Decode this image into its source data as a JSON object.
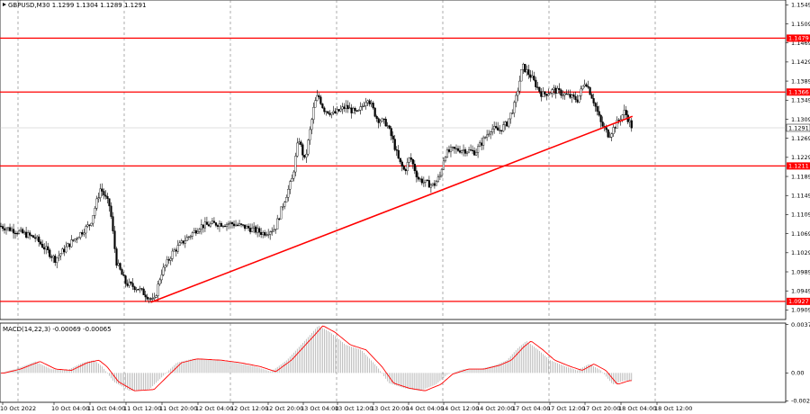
{
  "chart_data": [
    {
      "type": "candlestick",
      "title": "GBPUSD,M30  1.1299 1.1304 1.1289 1.1291",
      "ylim": [
        1.0889,
        1.1559
      ],
      "y_ticks": [
        "1.1549",
        "1.1509",
        "1.1469",
        "1.1429",
        "1.1389",
        "1.1349",
        "1.1309",
        "1.1269",
        "1.1229",
        "1.1189",
        "1.1149",
        "1.1109",
        "1.1069",
        "1.1029",
        "1.0989",
        "1.0949",
        "1.0909"
      ],
      "x_ticks": [
        "10 Oct 2022",
        "10 Oct 04:00",
        "11 Oct 04:00",
        "11 Oct 12:00",
        "11 Oct 20:00",
        "12 Oct 04:00",
        "12 Oct 12:00",
        "12 Oct 20:00",
        "13 Oct 04:00",
        "13 Oct 12:00",
        "13 Oct 20:00",
        "14 Oct 04:00",
        "14 Oct 12:00",
        "14 Oct 20:00",
        "17 Oct 04:00",
        "17 Oct 12:00",
        "17 Oct 20:00",
        "18 Oct 04:00",
        "18 Oct 12:00"
      ],
      "levels": [
        {
          "value": 1.1479,
          "label": "1.1479",
          "color": "#ff0000"
        },
        {
          "value": 1.1366,
          "label": "1.1366",
          "color": "#ff0000"
        },
        {
          "value": 1.1211,
          "label": "1.1211",
          "color": "#ff0000"
        },
        {
          "value": 1.0927,
          "label": "1.0927",
          "color": "#ff0000"
        }
      ],
      "current_price": {
        "value": 1.1291,
        "label": "1.1291"
      },
      "trendline": {
        "from": [
          0.192,
          1.0925
        ],
        "to": [
          0.805,
          1.1315
        ],
        "color": "#ff0000"
      },
      "anchors": [
        [
          0.0,
          1.1085
        ],
        [
          0.02,
          1.1075
        ],
        [
          0.045,
          1.106
        ],
        [
          0.07,
          1.1015
        ],
        [
          0.09,
          1.105
        ],
        [
          0.115,
          1.109
        ],
        [
          0.128,
          1.1165
        ],
        [
          0.14,
          1.1125
        ],
        [
          0.148,
          1.101
        ],
        [
          0.16,
          1.0965
        ],
        [
          0.175,
          1.0955
        ],
        [
          0.19,
          1.0935
        ],
        [
          0.196,
          1.0925
        ],
        [
          0.205,
          1.0985
        ],
        [
          0.22,
          1.103
        ],
        [
          0.235,
          1.1055
        ],
        [
          0.255,
          1.1085
        ],
        [
          0.275,
          1.109
        ],
        [
          0.295,
          1.109
        ],
        [
          0.318,
          1.108
        ],
        [
          0.335,
          1.107
        ],
        [
          0.35,
          1.108
        ],
        [
          0.36,
          1.113
        ],
        [
          0.372,
          1.1185
        ],
        [
          0.38,
          1.127
        ],
        [
          0.388,
          1.122
        ],
        [
          0.395,
          1.129
        ],
        [
          0.4,
          1.134
        ],
        [
          0.405,
          1.136
        ],
        [
          0.412,
          1.133
        ],
        [
          0.425,
          1.132
        ],
        [
          0.44,
          1.1335
        ],
        [
          0.455,
          1.132
        ],
        [
          0.468,
          1.1355
        ],
        [
          0.48,
          1.131
        ],
        [
          0.492,
          1.13
        ],
        [
          0.5,
          1.1265
        ],
        [
          0.508,
          1.122
        ],
        [
          0.515,
          1.12
        ],
        [
          0.522,
          1.123
        ],
        [
          0.532,
          1.1185
        ],
        [
          0.542,
          1.1175
        ],
        [
          0.552,
          1.117
        ],
        [
          0.56,
          1.119
        ],
        [
          0.566,
          1.1235
        ],
        [
          0.575,
          1.1245
        ],
        [
          0.59,
          1.1245
        ],
        [
          0.605,
          1.124
        ],
        [
          0.615,
          1.1265
        ],
        [
          0.625,
          1.129
        ],
        [
          0.635,
          1.1285
        ],
        [
          0.645,
          1.13
        ],
        [
          0.655,
          1.134
        ],
        [
          0.665,
          1.142
        ],
        [
          0.675,
          1.14
        ],
        [
          0.69,
          1.136
        ],
        [
          0.705,
          1.137
        ],
        [
          0.72,
          1.136
        ],
        [
          0.735,
          1.135
        ],
        [
          0.745,
          1.139
        ],
        [
          0.755,
          1.135
        ],
        [
          0.765,
          1.13
        ],
        [
          0.775,
          1.1275
        ],
        [
          0.785,
          1.13
        ],
        [
          0.795,
          1.1325
        ],
        [
          0.805,
          1.129
        ]
      ]
    },
    {
      "type": "histogram",
      "title": "MACD(14,22,3) -0.00069 -0.00065",
      "ylim": [
        -0.0023,
        0.0039
      ],
      "y_ticks": [
        "0.00378",
        "0.00",
        "-0.00219"
      ],
      "anchors": [
        [
          0.0,
          0.0
        ],
        [
          0.02,
          0.0003
        ],
        [
          0.045,
          0.0009
        ],
        [
          0.065,
          0.0003
        ],
        [
          0.085,
          0.0002
        ],
        [
          0.105,
          0.0008
        ],
        [
          0.12,
          0.001
        ],
        [
          0.13,
          0.0005
        ],
        [
          0.145,
          -0.0007
        ],
        [
          0.165,
          -0.0014
        ],
        [
          0.19,
          -0.0013
        ],
        [
          0.205,
          -0.0004
        ],
        [
          0.225,
          0.0008
        ],
        [
          0.245,
          0.0011
        ],
        [
          0.275,
          0.001
        ],
        [
          0.3,
          0.0008
        ],
        [
          0.325,
          0.0005
        ],
        [
          0.345,
          0.0001
        ],
        [
          0.365,
          0.001
        ],
        [
          0.38,
          0.002
        ],
        [
          0.395,
          0.003
        ],
        [
          0.405,
          0.0037
        ],
        [
          0.42,
          0.0032
        ],
        [
          0.44,
          0.0022
        ],
        [
          0.46,
          0.0018
        ],
        [
          0.48,
          0.0005
        ],
        [
          0.495,
          -0.0008
        ],
        [
          0.515,
          -0.0012
        ],
        [
          0.535,
          -0.0014
        ],
        [
          0.555,
          -0.0009
        ],
        [
          0.57,
          -0.0001
        ],
        [
          0.59,
          0.0003
        ],
        [
          0.61,
          0.0003
        ],
        [
          0.63,
          0.0006
        ],
        [
          0.645,
          0.001
        ],
        [
          0.66,
          0.002
        ],
        [
          0.67,
          0.0025
        ],
        [
          0.685,
          0.0018
        ],
        [
          0.7,
          0.001
        ],
        [
          0.72,
          0.0005
        ],
        [
          0.735,
          0.0002
        ],
        [
          0.75,
          0.0007
        ],
        [
          0.765,
          0.0002
        ],
        [
          0.78,
          -0.0009
        ],
        [
          0.795,
          -0.0006
        ],
        [
          0.805,
          -0.0006
        ]
      ]
    }
  ]
}
